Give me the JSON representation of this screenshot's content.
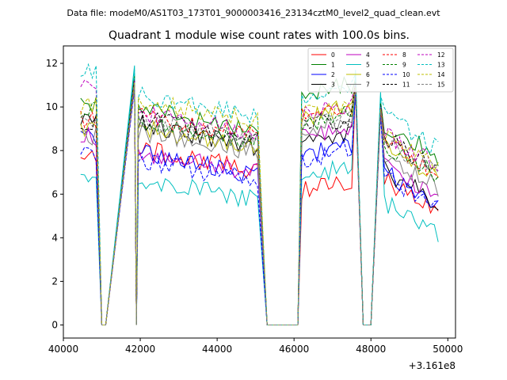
{
  "header": "Data file: modeM0/AS1T03_173T01_9000003416_23134cztM0_level2_quad_clean.evt",
  "chart_data": {
    "type": "line",
    "title": "Quadrant 1 module wise count rates with 100.0s bins.",
    "xlabel": "",
    "ylabel": "",
    "x_offset_label": "+3.161e8",
    "xlim": [
      40000,
      50200
    ],
    "ylim": [
      -0.6,
      12.8
    ],
    "xticks": [
      40000,
      42000,
      44000,
      46000,
      48000,
      50000
    ],
    "xtick_labels": [
      "40000",
      "42000",
      "44000",
      "46000",
      "48000",
      "50000"
    ],
    "yticks": [
      0,
      2,
      4,
      6,
      8,
      10,
      12
    ],
    "ytick_labels": [
      "0",
      "2",
      "4",
      "6",
      "8",
      "10",
      "12"
    ],
    "legend_position": "top-right",
    "segments": [
      [
        40450,
        40850
      ],
      [
        41850,
        45050
      ],
      [
        46200,
        47550
      ],
      [
        48250,
        49750
      ]
    ],
    "gap_points": [
      [
        41000,
        0
      ],
      [
        41100,
        0
      ],
      [
        41900,
        0
      ],
      [
        45300,
        0
      ],
      [
        46100,
        0
      ],
      [
        47800,
        0
      ],
      [
        48000,
        0
      ]
    ],
    "series": [
      {
        "name": "0",
        "color": "#ff0000",
        "dash": false,
        "base": [
          7.8,
          7.1,
          6.2,
          6.8
        ],
        "spike": 11.2
      },
      {
        "name": "1",
        "color": "#008000",
        "dash": false,
        "base": [
          10.2,
          9.0,
          10.6,
          9.3
        ],
        "spike": 11.5
      },
      {
        "name": "2",
        "color": "#0000ff",
        "dash": false,
        "base": [
          8.5,
          6.9,
          7.8,
          7.1
        ],
        "spike": 11.0
      },
      {
        "name": "3",
        "color": "#000000",
        "dash": false,
        "base": [
          9.3,
          8.2,
          8.3,
          7.2
        ],
        "spike": 11.3
      },
      {
        "name": "4",
        "color": "#bf00bf",
        "dash": false,
        "base": [
          8.6,
          7.0,
          8.6,
          7.4
        ],
        "spike": 10.9
      },
      {
        "name": "5",
        "color": "#00bfbf",
        "dash": false,
        "base": [
          6.6,
          5.7,
          6.8,
          5.7
        ],
        "spike": 11.9
      },
      {
        "name": "6",
        "color": "#bfbf00",
        "dash": false,
        "base": [
          9.0,
          8.1,
          9.5,
          8.3
        ],
        "spike": 11.2
      },
      {
        "name": "7",
        "color": "#808080",
        "dash": false,
        "base": [
          8.7,
          7.9,
          8.9,
          7.9
        ],
        "spike": 11.0
      },
      {
        "name": "8",
        "color": "#ff0000",
        "dash": true,
        "base": [
          9.4,
          8.6,
          9.5,
          8.6
        ],
        "spike": 11.1
      },
      {
        "name": "9",
        "color": "#008000",
        "dash": true,
        "base": [
          9.8,
          8.4,
          9.2,
          8.4
        ],
        "spike": 11.4
      },
      {
        "name": "10",
        "color": "#0000ff",
        "dash": true,
        "base": [
          7.8,
          6.6,
          7.6,
          6.9
        ],
        "spike": 10.8
      },
      {
        "name": "11",
        "color": "#000000",
        "dash": true,
        "base": [
          9.3,
          8.5,
          9.1,
          8.7
        ],
        "spike": 11.3
      },
      {
        "name": "12",
        "color": "#bf00bf",
        "dash": true,
        "base": [
          11.1,
          8.8,
          9.6,
          8.9
        ],
        "spike": 11.2
      },
      {
        "name": "13",
        "color": "#00bfbf",
        "dash": true,
        "base": [
          11.6,
          9.6,
          10.4,
          9.7
        ],
        "spike": 11.7
      },
      {
        "name": "14",
        "color": "#bfbf00",
        "dash": true,
        "base": [
          10.0,
          9.3,
          9.6,
          8.8
        ],
        "spike": 11.1
      },
      {
        "name": "15",
        "color": "#808080",
        "dash": true,
        "base": [
          9.3,
          8.4,
          9.1,
          8.5
        ],
        "spike": 11.0
      }
    ]
  }
}
